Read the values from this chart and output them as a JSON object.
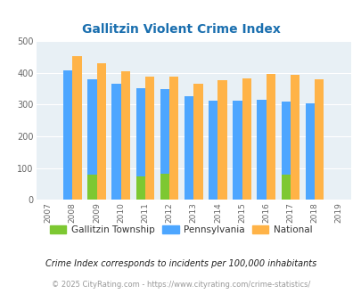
{
  "title": "Gallitzin Violent Crime Index",
  "years": [
    2007,
    2008,
    2009,
    2010,
    2011,
    2012,
    2013,
    2014,
    2015,
    2016,
    2017,
    2018,
    2019
  ],
  "bar_years": [
    2008,
    2009,
    2010,
    2011,
    2012,
    2013,
    2014,
    2015,
    2016,
    2017,
    2018
  ],
  "gallitzin": [
    0,
    80,
    0,
    75,
    82,
    0,
    0,
    0,
    0,
    80,
    0
  ],
  "pennsylvania": [
    408,
    380,
    365,
    352,
    348,
    328,
    313,
    313,
    314,
    311,
    305
  ],
  "national": [
    454,
    430,
    405,
    388,
    388,
    367,
    378,
    384,
    398,
    394,
    380
  ],
  "gallitzin_color": "#7dc832",
  "pennsylvania_color": "#4da6ff",
  "national_color": "#ffb347",
  "bg_color": "#e8f0f5",
  "title_color": "#1a6faf",
  "ylim": [
    0,
    500
  ],
  "yticks": [
    0,
    100,
    200,
    300,
    400,
    500
  ],
  "footnote1": "Crime Index corresponds to incidents per 100,000 inhabitants",
  "footnote2": "© 2025 CityRating.com - https://www.cityrating.com/crime-statistics/",
  "legend_labels": [
    "Gallitzin Township",
    "Pennsylvania",
    "National"
  ]
}
